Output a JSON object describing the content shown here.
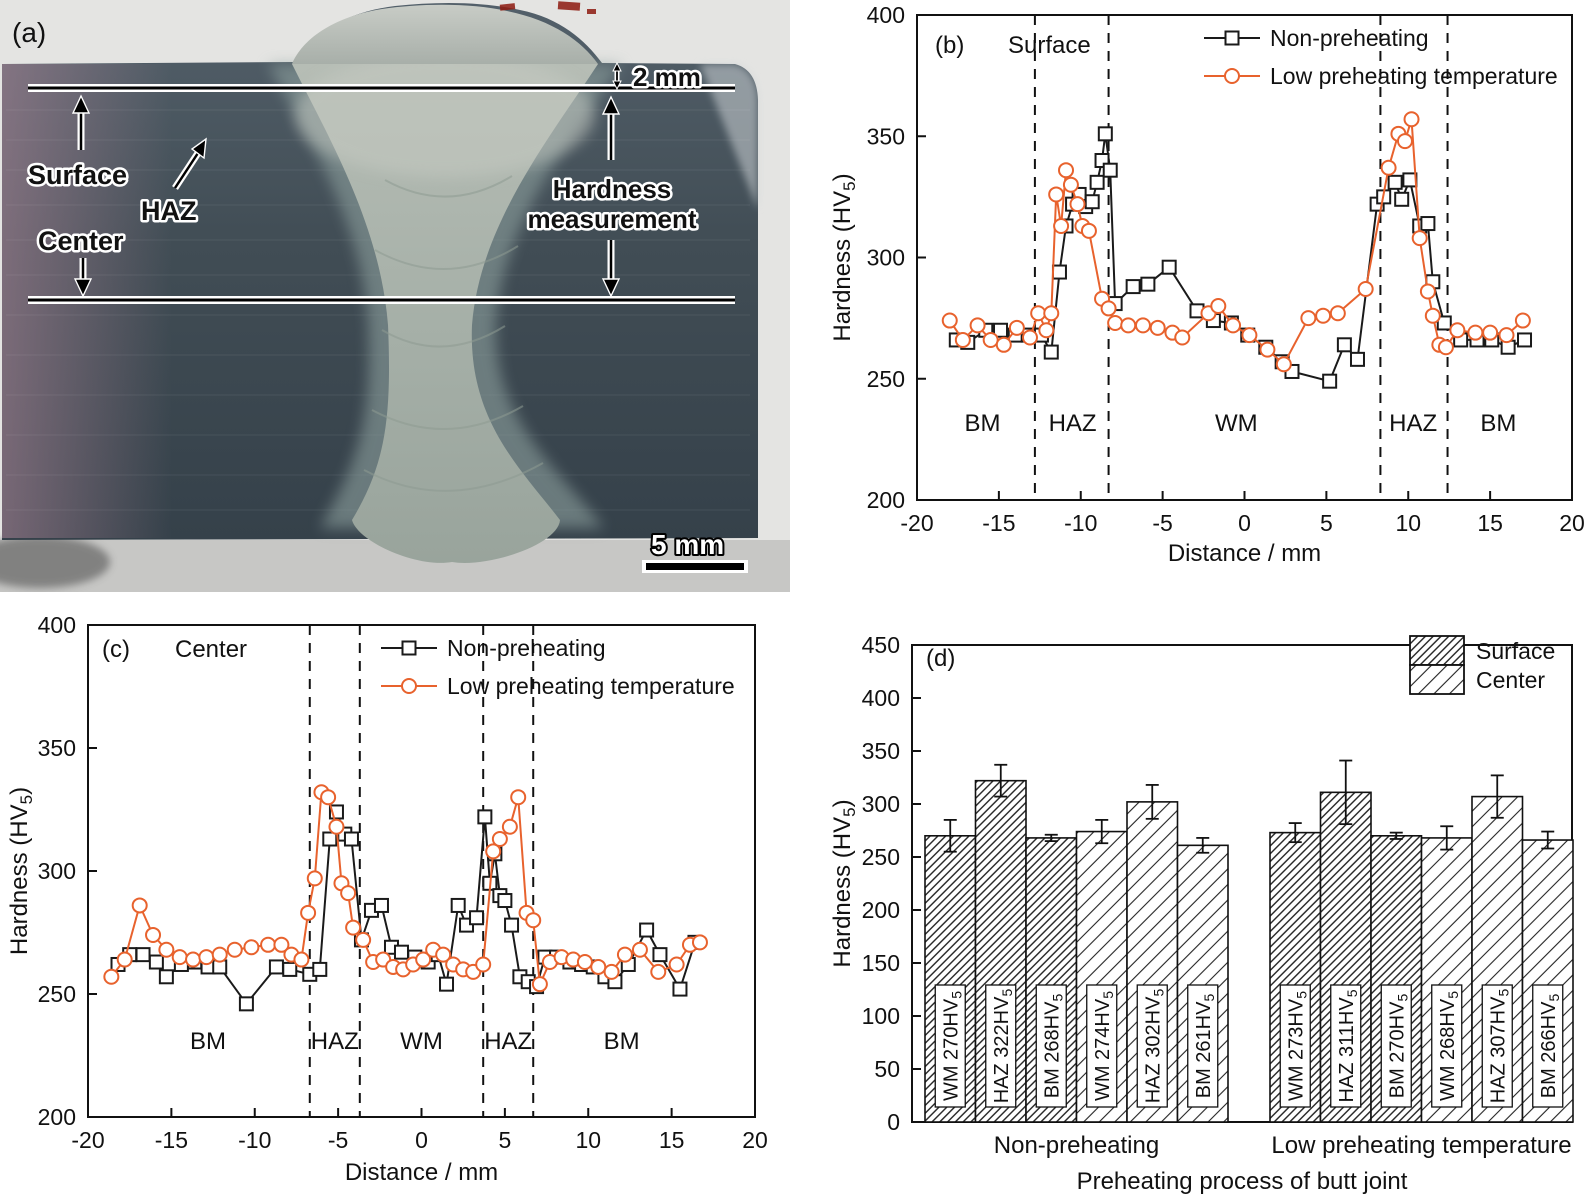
{
  "colors": {
    "non_preheating": "#1a1a1a",
    "low_preheating": "#e8622d",
    "axis": "#111111"
  },
  "panel_a": {
    "tag": "(a)",
    "annotations": {
      "depth_label": "2 mm",
      "surface": "Surface",
      "haz": "HAZ",
      "center": "Center",
      "hardness_line1": "Hardness",
      "hardness_line2": "measurement",
      "scale_label": "5 mm"
    }
  },
  "chart_data": [
    {
      "id": "b",
      "type": "line",
      "tag": "(b)",
      "subtitle": "Surface",
      "xlabel": "Distance / mm",
      "ylabel": {
        "pre": "Hardness (HV",
        "sub": "5",
        "post": ")"
      },
      "xlim": [
        -20,
        20
      ],
      "ylim": [
        200,
        400
      ],
      "xticks": [
        -20,
        -15,
        -10,
        -5,
        0,
        5,
        10,
        15,
        20
      ],
      "yticks": [
        200,
        250,
        300,
        350,
        400
      ],
      "zone_boundaries": [
        -12.8,
        -8.3,
        8.3,
        12.4
      ],
      "zones": [
        {
          "label": "BM",
          "x": -16
        },
        {
          "label": "HAZ",
          "x": -10.5
        },
        {
          "label": "WM",
          "x": -0.5
        },
        {
          "label": "HAZ",
          "x": 10.3
        },
        {
          "label": "BM",
          "x": 15.5
        }
      ],
      "legend_position": "top-right-inside",
      "grid": false,
      "series": [
        {
          "name": "Non-preheating",
          "color": "#1a1a1a",
          "marker": "square",
          "points": [
            [
              -17.6,
              266
            ],
            [
              -16.9,
              265
            ],
            [
              -15.8,
              270
            ],
            [
              -14.9,
              270
            ],
            [
              -14,
              268
            ],
            [
              -13.2,
              268
            ],
            [
              -12.4,
              268
            ],
            [
              -11.8,
              261
            ],
            [
              -11.3,
              294
            ],
            [
              -10.9,
              313
            ],
            [
              -10.5,
              322
            ],
            [
              -10.1,
              326
            ],
            [
              -9.7,
              321
            ],
            [
              -9.3,
              323
            ],
            [
              -9,
              331
            ],
            [
              -8.7,
              340
            ],
            [
              -8.5,
              351
            ],
            [
              -8.2,
              336
            ],
            [
              -7.9,
              281
            ],
            [
              -6.8,
              288
            ],
            [
              -5.9,
              289
            ],
            [
              -4.6,
              296
            ],
            [
              -2.9,
              278
            ],
            [
              -1.9,
              274
            ],
            [
              -0.8,
              273
            ],
            [
              0.2,
              268
            ],
            [
              1.3,
              263
            ],
            [
              2.3,
              257
            ],
            [
              2.9,
              253
            ],
            [
              5.2,
              249
            ],
            [
              6.1,
              264
            ],
            [
              6.9,
              258
            ],
            [
              8.1,
              322
            ],
            [
              8.5,
              325
            ],
            [
              9.2,
              331
            ],
            [
              9.6,
              324
            ],
            [
              10.1,
              332
            ],
            [
              10.7,
              313
            ],
            [
              11.2,
              314
            ],
            [
              11.5,
              290
            ],
            [
              12.2,
              273
            ],
            [
              13.2,
              266
            ],
            [
              14.2,
              266
            ],
            [
              15.1,
              266
            ],
            [
              16.1,
              263
            ],
            [
              17.1,
              266
            ]
          ]
        },
        {
          "name": "Low preheating temperature",
          "color": "#e8622d",
          "marker": "circle",
          "points": [
            [
              -18,
              274
            ],
            [
              -17.2,
              266
            ],
            [
              -16.3,
              272
            ],
            [
              -15.5,
              266
            ],
            [
              -14.7,
              264
            ],
            [
              -13.9,
              271
            ],
            [
              -13.1,
              267
            ],
            [
              -12.6,
              277
            ],
            [
              -12.1,
              270
            ],
            [
              -11.8,
              277
            ],
            [
              -11.5,
              326
            ],
            [
              -11.2,
              313
            ],
            [
              -10.9,
              336
            ],
            [
              -10.6,
              330
            ],
            [
              -10.2,
              322
            ],
            [
              -9.9,
              313
            ],
            [
              -9.5,
              311
            ],
            [
              -8.7,
              283
            ],
            [
              -8.3,
              279
            ],
            [
              -7.9,
              273
            ],
            [
              -7.1,
              272
            ],
            [
              -6.2,
              272
            ],
            [
              -5.3,
              271
            ],
            [
              -4.4,
              269
            ],
            [
              -3.8,
              267
            ],
            [
              -2.2,
              277
            ],
            [
              -1.6,
              280
            ],
            [
              -0.7,
              272
            ],
            [
              0.3,
              268
            ],
            [
              1.4,
              262
            ],
            [
              2.4,
              256
            ],
            [
              3.9,
              275
            ],
            [
              4.8,
              276
            ],
            [
              5.7,
              277
            ],
            [
              7.4,
              287
            ],
            [
              8.8,
              337
            ],
            [
              9.4,
              351
            ],
            [
              9.8,
              348
            ],
            [
              10.2,
              357
            ],
            [
              10.7,
              308
            ],
            [
              11.2,
              286
            ],
            [
              11.5,
              276
            ],
            [
              11.9,
              264
            ],
            [
              12.3,
              263
            ],
            [
              13,
              270
            ],
            [
              14.1,
              269
            ],
            [
              15,
              269
            ],
            [
              16,
              268
            ],
            [
              17,
              274
            ]
          ]
        }
      ]
    },
    {
      "id": "c",
      "type": "line",
      "tag": "(c)",
      "subtitle": "Center",
      "xlabel": "Distance / mm",
      "ylabel": {
        "pre": "Hardness (HV",
        "sub": "5",
        "post": ")"
      },
      "xlim": [
        -20,
        20
      ],
      "ylim": [
        200,
        400
      ],
      "xticks": [
        -20,
        -15,
        -10,
        -5,
        0,
        5,
        10,
        15,
        20
      ],
      "yticks": [
        200,
        250,
        300,
        350,
        400
      ],
      "zone_boundaries": [
        -6.7,
        -3.7,
        3.7,
        6.7
      ],
      "zones": [
        {
          "label": "BM",
          "x": -12.8
        },
        {
          "label": "HAZ",
          "x": -5.2
        },
        {
          "label": "WM",
          "x": 0
        },
        {
          "label": "HAZ",
          "x": 5.2
        },
        {
          "label": "BM",
          "x": 12
        }
      ],
      "legend_position": "top-right-inside",
      "grid": false,
      "series": [
        {
          "name": "Non-preheating",
          "color": "#1a1a1a",
          "marker": "square",
          "points": [
            [
              -18.2,
              262
            ],
            [
              -17.5,
              266
            ],
            [
              -16.7,
              266
            ],
            [
              -15.9,
              263
            ],
            [
              -15.3,
              257
            ],
            [
              -14.4,
              262
            ],
            [
              -13.6,
              263
            ],
            [
              -12.8,
              261
            ],
            [
              -12.1,
              261
            ],
            [
              -10.5,
              246
            ],
            [
              -8.7,
              261
            ],
            [
              -7.9,
              260
            ],
            [
              -6.7,
              258
            ],
            [
              -6.1,
              260
            ],
            [
              -5.5,
              313
            ],
            [
              -5.1,
              324
            ],
            [
              -4.6,
              315
            ],
            [
              -4.2,
              313
            ],
            [
              -3.6,
              272
            ],
            [
              -3,
              284
            ],
            [
              -2.4,
              286
            ],
            [
              -1.8,
              269
            ],
            [
              -1.2,
              267
            ],
            [
              -0.4,
              265
            ],
            [
              0.4,
              263
            ],
            [
              1,
              266
            ],
            [
              1.5,
              254
            ],
            [
              2.2,
              286
            ],
            [
              2.7,
              278
            ],
            [
              3.3,
              281
            ],
            [
              3.8,
              322
            ],
            [
              4.1,
              295
            ],
            [
              4.4,
              307
            ],
            [
              4.7,
              290
            ],
            [
              5,
              288
            ],
            [
              5.4,
              278
            ],
            [
              5.9,
              257
            ],
            [
              6.4,
              255
            ],
            [
              6.9,
              253
            ],
            [
              7.4,
              265
            ],
            [
              8.1,
              265
            ],
            [
              8.9,
              263
            ],
            [
              9.6,
              262
            ],
            [
              10.3,
              261
            ],
            [
              11,
              257
            ],
            [
              11.6,
              255
            ],
            [
              12.4,
              262
            ],
            [
              13.5,
              276
            ],
            [
              14.3,
              266
            ],
            [
              15.5,
              252
            ],
            [
              16.4,
              271
            ]
          ]
        },
        {
          "name": "Low preheating temperature",
          "color": "#e8622d",
          "marker": "circle",
          "points": [
            [
              -18.6,
              257
            ],
            [
              -17.8,
              264
            ],
            [
              -16.9,
              286
            ],
            [
              -16.1,
              274
            ],
            [
              -15.3,
              268
            ],
            [
              -14.5,
              265
            ],
            [
              -13.7,
              264
            ],
            [
              -12.9,
              265
            ],
            [
              -12.1,
              266
            ],
            [
              -11.2,
              268
            ],
            [
              -10.2,
              269
            ],
            [
              -9.2,
              270
            ],
            [
              -8.4,
              270
            ],
            [
              -7.8,
              266
            ],
            [
              -7.2,
              264
            ],
            [
              -6.8,
              283
            ],
            [
              -6.4,
              297
            ],
            [
              -6,
              332
            ],
            [
              -5.6,
              330
            ],
            [
              -5.1,
              318
            ],
            [
              -4.8,
              295
            ],
            [
              -4.4,
              291
            ],
            [
              -4.1,
              277
            ],
            [
              -3.5,
              272
            ],
            [
              -2.9,
              263
            ],
            [
              -2.3,
              264
            ],
            [
              -1.7,
              261
            ],
            [
              -1.1,
              260
            ],
            [
              -0.5,
              262
            ],
            [
              0.1,
              264
            ],
            [
              0.7,
              268
            ],
            [
              1.3,
              266
            ],
            [
              1.9,
              262
            ],
            [
              2.5,
              260
            ],
            [
              3.1,
              259
            ],
            [
              3.7,
              262
            ],
            [
              4.3,
              308
            ],
            [
              4.7,
              313
            ],
            [
              5.3,
              318
            ],
            [
              5.8,
              330
            ],
            [
              6.3,
              283
            ],
            [
              6.7,
              280
            ],
            [
              7.1,
              254
            ],
            [
              7.7,
              263
            ],
            [
              8.4,
              265
            ],
            [
              9.1,
              264
            ],
            [
              9.8,
              263
            ],
            [
              10.6,
              261
            ],
            [
              11.4,
              259
            ],
            [
              12.2,
              266
            ],
            [
              13.1,
              268
            ],
            [
              14.2,
              259
            ],
            [
              15.3,
              262
            ],
            [
              16.1,
              270
            ],
            [
              16.7,
              271
            ]
          ]
        }
      ]
    },
    {
      "id": "d",
      "type": "bar",
      "tag": "(d)",
      "xlabel": "Preheating process of butt joint",
      "ylabel": {
        "pre": "Hardness (HV",
        "sub": "5",
        "post": ")"
      },
      "ylim": [
        0,
        450
      ],
      "yticks": [
        0,
        50,
        100,
        150,
        200,
        250,
        300,
        350,
        400,
        450
      ],
      "legend": [
        {
          "label": "Surface",
          "hatch": "dense"
        },
        {
          "label": "Center",
          "hatch": "sparse"
        }
      ],
      "groups": [
        {
          "label": "Non-preheating",
          "bars": [
            {
              "label_pre": "WM 270HV",
              "label_sub": "5",
              "value": 270,
              "err": 15,
              "hatch": "dense"
            },
            {
              "label_pre": "HAZ 322HV",
              "label_sub": "5",
              "value": 322,
              "err": 15,
              "hatch": "dense"
            },
            {
              "label_pre": "BM 268HV",
              "label_sub": "5",
              "value": 268,
              "err": 3,
              "hatch": "dense"
            },
            {
              "label_pre": "WM 274HV",
              "label_sub": "5",
              "value": 274,
              "err": 11,
              "hatch": "sparse"
            },
            {
              "label_pre": "HAZ 302HV",
              "label_sub": "5",
              "value": 302,
              "err": 16,
              "hatch": "sparse"
            },
            {
              "label_pre": "BM 261HV",
              "label_sub": "5",
              "value": 261,
              "err": 7,
              "hatch": "sparse"
            }
          ]
        },
        {
          "label": "Low preheating temperature",
          "bars": [
            {
              "label_pre": "WM 273HV",
              "label_sub": "5",
              "value": 273,
              "err": 9,
              "hatch": "dense"
            },
            {
              "label_pre": "HAZ 311HV",
              "label_sub": "5",
              "value": 311,
              "err": 30,
              "hatch": "dense"
            },
            {
              "label_pre": "BM 270HV",
              "label_sub": "5",
              "value": 270,
              "err": 3,
              "hatch": "dense"
            },
            {
              "label_pre": "WM 268HV",
              "label_sub": "5",
              "value": 268,
              "err": 11,
              "hatch": "sparse"
            },
            {
              "label_pre": "HAZ 307HV",
              "label_sub": "5",
              "value": 307,
              "err": 20,
              "hatch": "sparse"
            },
            {
              "label_pre": "BM 266HV",
              "label_sub": "5",
              "value": 266,
              "err": 8,
              "hatch": "sparse"
            }
          ]
        }
      ]
    }
  ]
}
